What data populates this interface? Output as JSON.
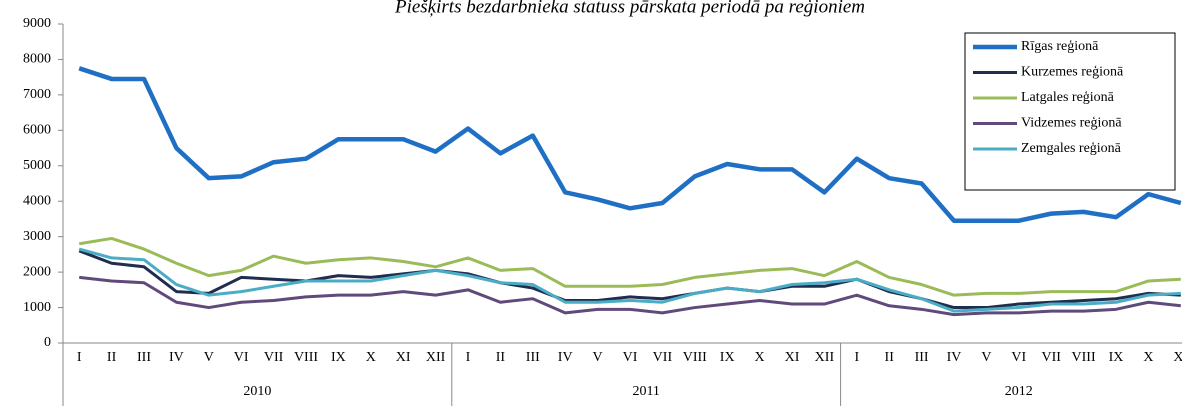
{
  "chart_data": {
    "type": "line",
    "title": "Piešķirts bezdarbnieka statuss pārskata periodā pa reģioniem",
    "categories": [
      "I",
      "II",
      "III",
      "IV",
      "V",
      "VI",
      "VII",
      "VIII",
      "IX",
      "X",
      "XI",
      "XII",
      "I",
      "II",
      "III",
      "IV",
      "V",
      "VI",
      "VII",
      "VIII",
      "IX",
      "X",
      "XI",
      "XII",
      "I",
      "II",
      "III",
      "IV",
      "V",
      "VI",
      "VII",
      "VIII",
      "IX",
      "X",
      "XI"
    ],
    "x_groups": [
      {
        "label": "2010",
        "count": 12
      },
      {
        "label": "2011",
        "count": 12
      },
      {
        "label": "2012",
        "count": 11
      }
    ],
    "series": [
      {
        "name": "Rīgas reģionā",
        "color": "#1f6fc5",
        "width": 4.5,
        "values": [
          7750,
          7450,
          7450,
          5500,
          4650,
          4700,
          5100,
          5200,
          5750,
          5750,
          5750,
          5400,
          6050,
          5350,
          5850,
          4250,
          4050,
          3800,
          3950,
          4700,
          5050,
          4900,
          4900,
          4250,
          5200,
          4650,
          4500,
          3450,
          3450,
          3450,
          3650,
          3700,
          3550,
          4200,
          3950
        ]
      },
      {
        "name": "Kurzemes reģionā",
        "color": "#1f2d4f",
        "width": 3,
        "values": [
          2600,
          2250,
          2150,
          1450,
          1400,
          1850,
          1800,
          1750,
          1900,
          1850,
          1950,
          2050,
          1950,
          1700,
          1550,
          1200,
          1200,
          1300,
          1250,
          1400,
          1550,
          1450,
          1600,
          1600,
          1800,
          1450,
          1250,
          1000,
          1000,
          1100,
          1150,
          1200,
          1250,
          1400,
          1350
        ]
      },
      {
        "name": "Latgales reģionā",
        "color": "#9bbb59",
        "width": 3,
        "values": [
          2800,
          2950,
          2650,
          2250,
          1900,
          2050,
          2450,
          2250,
          2350,
          2400,
          2300,
          2150,
          2400,
          2050,
          2100,
          1600,
          1600,
          1600,
          1650,
          1850,
          1950,
          2050,
          2100,
          1900,
          2300,
          1850,
          1650,
          1350,
          1400,
          1400,
          1450,
          1450,
          1450,
          1750,
          1800
        ]
      },
      {
        "name": "Vidzemes reģionā",
        "color": "#604a7b",
        "width": 3,
        "values": [
          1850,
          1750,
          1700,
          1150,
          1000,
          1150,
          1200,
          1300,
          1350,
          1350,
          1450,
          1350,
          1500,
          1150,
          1250,
          850,
          950,
          950,
          850,
          1000,
          1100,
          1200,
          1100,
          1100,
          1350,
          1050,
          950,
          800,
          850,
          850,
          900,
          900,
          950,
          1150,
          1050
        ]
      },
      {
        "name": "Zemgales reģionā",
        "color": "#4bacc6",
        "width": 3,
        "values": [
          2650,
          2400,
          2350,
          1650,
          1350,
          1450,
          1600,
          1750,
          1750,
          1750,
          1900,
          2050,
          1900,
          1700,
          1650,
          1150,
          1150,
          1200,
          1150,
          1400,
          1550,
          1450,
          1650,
          1700,
          1800,
          1500,
          1250,
          900,
          950,
          1000,
          1100,
          1100,
          1150,
          1350,
          1400
        ]
      }
    ],
    "ylim": [
      0,
      9000
    ],
    "yticks": [
      0,
      1000,
      2000,
      3000,
      4000,
      5000,
      6000,
      7000,
      8000,
      9000
    ],
    "grid": false,
    "legend": "top-right"
  }
}
